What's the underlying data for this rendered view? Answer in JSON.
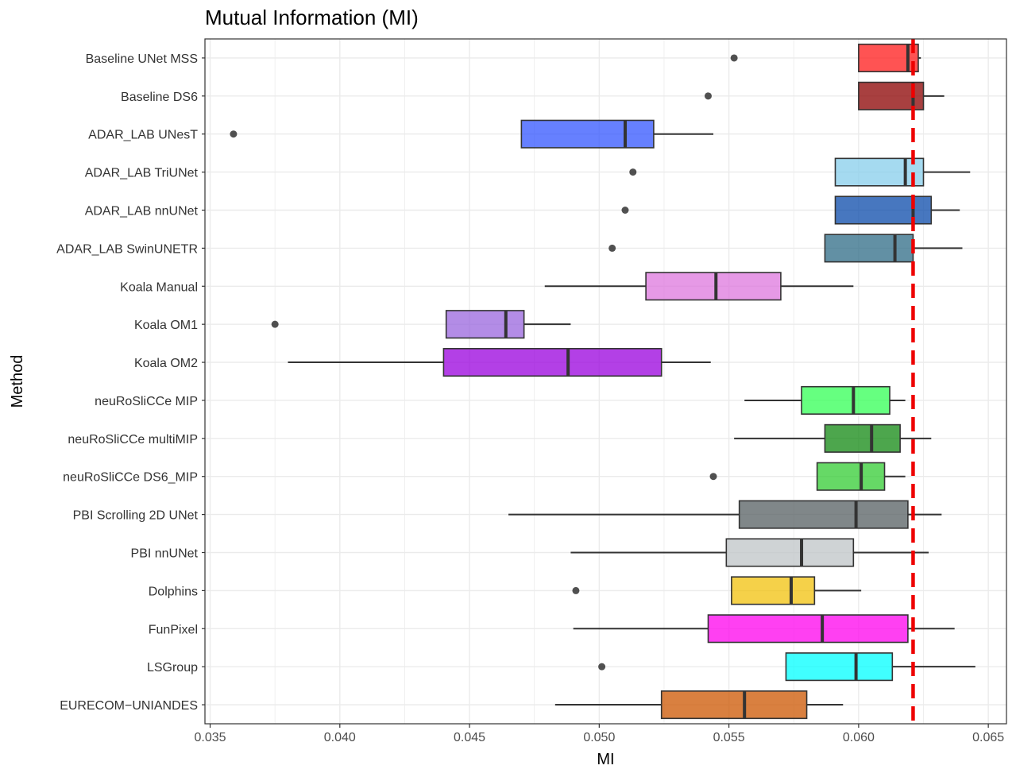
{
  "chart_data": {
    "type": "boxplot",
    "orientation": "horizontal",
    "title": "Mutual Information (MI)",
    "xlabel": "MI",
    "ylabel": "Method",
    "xlim": [
      0.0348,
      0.0657
    ],
    "xticks": [
      0.035,
      0.04,
      0.045,
      0.05,
      0.055,
      0.06,
      0.065
    ],
    "xtick_labels": [
      "0.035",
      "0.040",
      "0.045",
      "0.050",
      "0.055",
      "0.060",
      "0.065"
    ],
    "grid": true,
    "reference_line": {
      "value": 0.0621,
      "color": "#ee0000",
      "style": "dashed"
    },
    "series": [
      {
        "name": "Baseline UNet MSS",
        "whisker_low": 0.06,
        "q1": 0.06,
        "median": 0.0619,
        "q3": 0.0623,
        "whisker_high": 0.0624,
        "outliers": [
          0.0552
        ],
        "color": "#ff1a1a"
      },
      {
        "name": "Baseline DS6",
        "whisker_low": 0.06,
        "q1": 0.06,
        "median": 0.0621,
        "q3": 0.0625,
        "whisker_high": 0.0633,
        "outliers": [
          0.0542
        ],
        "color": "#8b0000"
      },
      {
        "name": "ADAR_LAB UNesT",
        "whisker_low": 0.047,
        "q1": 0.047,
        "median": 0.051,
        "q3": 0.0521,
        "whisker_high": 0.0544,
        "outliers": [
          0.0359
        ],
        "color": "#3355ff"
      },
      {
        "name": "ADAR_LAB TriUNet",
        "whisker_low": 0.0591,
        "q1": 0.0591,
        "median": 0.0618,
        "q3": 0.0625,
        "whisker_high": 0.0643,
        "outliers": [
          0.0513
        ],
        "color": "#87ceeb"
      },
      {
        "name": "ADAR_LAB nnUNet",
        "whisker_low": 0.0591,
        "q1": 0.0591,
        "median": 0.0621,
        "q3": 0.0628,
        "whisker_high": 0.0639,
        "outliers": [
          0.051
        ],
        "color": "#0a4aaa"
      },
      {
        "name": "ADAR_LAB SwinUNETR",
        "whisker_low": 0.0587,
        "q1": 0.0587,
        "median": 0.0614,
        "q3": 0.0621,
        "whisker_high": 0.064,
        "outliers": [
          0.0505
        ],
        "color": "#2e6b85"
      },
      {
        "name": "Koala Manual",
        "whisker_low": 0.0479,
        "q1": 0.0518,
        "median": 0.0545,
        "q3": 0.057,
        "whisker_high": 0.0598,
        "outliers": [],
        "color": "#dd77dd"
      },
      {
        "name": "Koala OM1",
        "whisker_low": 0.0441,
        "q1": 0.0441,
        "median": 0.0464,
        "q3": 0.0471,
        "whisker_high": 0.0489,
        "outliers": [
          0.0375
        ],
        "color": "#9966dd"
      },
      {
        "name": "Koala OM2",
        "whisker_low": 0.038,
        "q1": 0.044,
        "median": 0.0488,
        "q3": 0.0524,
        "whisker_high": 0.0543,
        "outliers": [],
        "color": "#9900dd"
      },
      {
        "name": "neuRoSliCCe MIP",
        "whisker_low": 0.0556,
        "q1": 0.0578,
        "median": 0.0598,
        "q3": 0.0612,
        "whisker_high": 0.0618,
        "outliers": [],
        "color": "#33ff55"
      },
      {
        "name": "neuRoSliCCe multiMIP",
        "whisker_low": 0.0552,
        "q1": 0.0587,
        "median": 0.0605,
        "q3": 0.0616,
        "whisker_high": 0.0628,
        "outliers": [],
        "color": "#118811"
      },
      {
        "name": "neuRoSliCCe DS6_MIP",
        "whisker_low": 0.0584,
        "q1": 0.0584,
        "median": 0.0601,
        "q3": 0.061,
        "whisker_high": 0.0618,
        "outliers": [
          0.0544
        ],
        "color": "#33cc33"
      },
      {
        "name": "PBI Scrolling 2D UNet",
        "whisker_low": 0.0465,
        "q1": 0.0554,
        "median": 0.0599,
        "q3": 0.0619,
        "whisker_high": 0.0632,
        "outliers": [],
        "color": "#555f62"
      },
      {
        "name": "PBI nnUNet",
        "whisker_low": 0.0489,
        "q1": 0.0549,
        "median": 0.0578,
        "q3": 0.0598,
        "whisker_high": 0.0627,
        "outliers": [],
        "color": "#bfc4c7"
      },
      {
        "name": "Dolphins",
        "whisker_low": 0.0551,
        "q1": 0.0551,
        "median": 0.0574,
        "q3": 0.0583,
        "whisker_high": 0.0601,
        "outliers": [
          0.0491
        ],
        "color": "#f2c20c"
      },
      {
        "name": "FunPixel",
        "whisker_low": 0.049,
        "q1": 0.0542,
        "median": 0.0586,
        "q3": 0.0619,
        "whisker_high": 0.0637,
        "outliers": [],
        "color": "#ff00ee"
      },
      {
        "name": "LSGroup",
        "whisker_low": 0.0572,
        "q1": 0.0572,
        "median": 0.0599,
        "q3": 0.0613,
        "whisker_high": 0.0645,
        "outliers": [
          0.0501
        ],
        "color": "#00ffff"
      },
      {
        "name": "EURECOM−UNIANDES",
        "whisker_low": 0.0483,
        "q1": 0.0524,
        "median": 0.0556,
        "q3": 0.058,
        "whisker_high": 0.0594,
        "outliers": [],
        "color": "#cc5500"
      }
    ]
  }
}
